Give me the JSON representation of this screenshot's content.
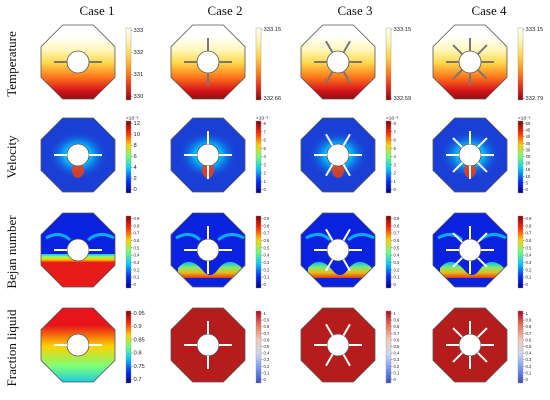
{
  "column_titles": [
    "Case 1",
    "Case 2",
    "Case 3",
    "Case 4"
  ],
  "row_labels": [
    "Temperature",
    "Velocity",
    "Bejan number",
    "Fraction liquid"
  ],
  "cases": [
    {
      "fins": 2
    },
    {
      "fins": 4
    },
    {
      "fins": 6
    },
    {
      "fins": 8
    }
  ],
  "colorbars": {
    "temperature": [
      {
        "ticks": [
          "333",
          "332",
          "331",
          "330"
        ],
        "type": "thermal"
      },
      {
        "ticks": [
          "333.15",
          "332.66"
        ],
        "type": "thermal"
      },
      {
        "ticks": [
          "333.15",
          "332.59"
        ],
        "type": "thermal"
      },
      {
        "ticks": [
          "333.15",
          "332.79"
        ],
        "type": "thermal"
      }
    ],
    "velocity": [
      {
        "exponent": "×10⁻³",
        "ticks": [
          "12",
          "10",
          "8",
          "6",
          "4",
          "2",
          "0"
        ],
        "type": "rainbow"
      },
      {
        "exponent": "×10⁻³",
        "ticks": [
          "8",
          "7",
          "6",
          "5",
          "4",
          "3",
          "2",
          "1",
          "0"
        ],
        "type": "rainbow"
      },
      {
        "exponent": "×10⁻³",
        "ticks": [
          "8",
          "7",
          "6",
          "5",
          "4",
          "3",
          "2",
          "1",
          "0"
        ],
        "type": "rainbow"
      },
      {
        "exponent": "×10⁻³",
        "ticks": [
          "50",
          "45",
          "40",
          "35",
          "30",
          "25",
          "20",
          "15",
          "10",
          "5",
          "0"
        ],
        "type": "rainbow"
      }
    ],
    "bejan": [
      {
        "ticks": [
          "0.9",
          "0.8",
          "0.7",
          "0.6",
          "0.5",
          "0.4",
          "0.3",
          "0.2",
          "0.1",
          "0"
        ],
        "type": "rainbow"
      },
      {
        "ticks": [
          "0.9",
          "0.8",
          "0.7",
          "0.6",
          "0.5",
          "0.4",
          "0.3",
          "0.2",
          "0.1",
          "0"
        ],
        "type": "rainbow"
      },
      {
        "ticks": [
          "0.9",
          "0.8",
          "0.7",
          "0.6",
          "0.5",
          "0.4",
          "0.3",
          "0.2",
          "0.1",
          "0"
        ],
        "type": "rainbow"
      },
      {
        "ticks": [
          "0.9",
          "0.8",
          "0.7",
          "0.6",
          "0.5",
          "0.4",
          "0.3",
          "0.2",
          "0.1",
          "0"
        ],
        "type": "rainbow"
      }
    ],
    "liquid": [
      {
        "ticks": [
          "0.95",
          "0.9",
          "0.85",
          "0.8",
          "0.75",
          "0.7"
        ],
        "type": "rainbow"
      },
      {
        "ticks": [
          "1",
          "0.9",
          "0.8",
          "0.7",
          "0.6",
          "0.5",
          "0.4",
          "0.3",
          "0.2",
          "0.1",
          "0"
        ],
        "type": "coolwarm"
      },
      {
        "ticks": [
          "1",
          "0.9",
          "0.8",
          "0.7",
          "0.6",
          "0.5",
          "0.4",
          "0.3",
          "0.2",
          "0.1",
          "0"
        ],
        "type": "coolwarm"
      },
      {
        "ticks": [
          "1",
          "0.9",
          "0.8",
          "0.7",
          "0.6",
          "0.5",
          "0.4",
          "0.3",
          "0.2",
          "0.1",
          "0"
        ],
        "type": "coolwarm"
      }
    ]
  },
  "colors": {
    "fluid_blue": "#1a3fd6",
    "liquid_red": "#b71c1c",
    "melt_red": "#e8141a",
    "outline": "#555555"
  }
}
